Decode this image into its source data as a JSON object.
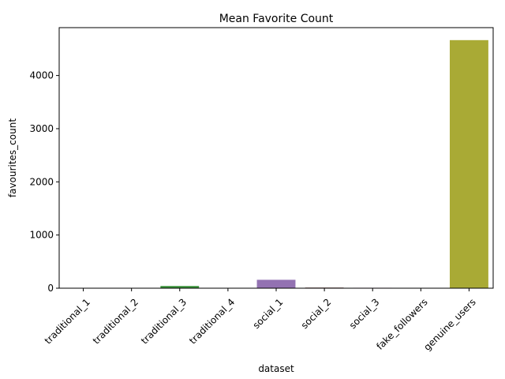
{
  "chart_data": {
    "type": "bar",
    "title": "Mean Favorite Count",
    "xlabel": "dataset",
    "ylabel": "favourites_count",
    "categories": [
      "traditional_1",
      "traditional_2",
      "traditional_3",
      "traditional_4",
      "social_1",
      "social_2",
      "social_3",
      "fake_followers",
      "genuine_users"
    ],
    "values": [
      1,
      1,
      41,
      1,
      158,
      12,
      8,
      1,
      4665
    ],
    "colors": [
      "#3274a1",
      "#e1812c",
      "#3a923a",
      "#c03d3e",
      "#9372b2",
      "#845b53",
      "#d684bd",
      "#7f7f7f",
      "#a9aa35"
    ],
    "ylim": [
      0,
      4900
    ],
    "yticks": [
      0,
      1000,
      2000,
      3000,
      4000
    ],
    "grid": false,
    "legend": "none"
  }
}
